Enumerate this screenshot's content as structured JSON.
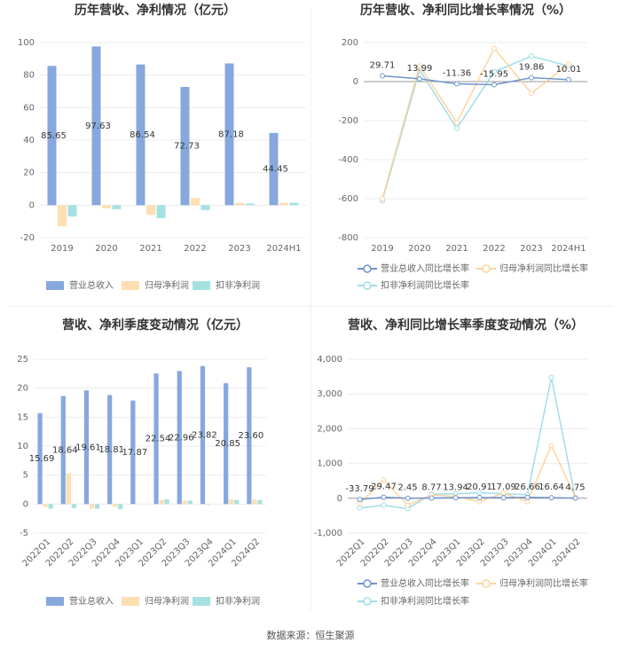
{
  "chart_data": [
    {
      "type": "bar",
      "title": "历年营收、净利情况（亿元）",
      "categories": [
        "2019",
        "2020",
        "2021",
        "2022",
        "2023",
        "2024H1"
      ],
      "series": [
        {
          "name": "营业总收入",
          "color": "#87a8dd",
          "values": [
            85.65,
            97.63,
            86.54,
            72.73,
            87.18,
            44.45
          ],
          "show_labels": true
        },
        {
          "name": "归母净利润",
          "color": "#fddfb2",
          "values": [
            -13,
            -2,
            -6,
            4.5,
            1.5,
            1.5
          ]
        },
        {
          "name": "扣非净利润",
          "color": "#a6e1e1",
          "values": [
            -7,
            -2.5,
            -8,
            -3,
            1,
            1.5
          ]
        }
      ],
      "ylim": [
        -20,
        100
      ],
      "yticks": [
        -20,
        0,
        20,
        40,
        60,
        80,
        100
      ],
      "grid": true
    },
    {
      "type": "line",
      "title": "历年营收、净利同比增长率情况（%）",
      "categories": [
        "2019",
        "2020",
        "2021",
        "2022",
        "2023",
        "2024H1"
      ],
      "series": [
        {
          "name": "营业总收入同比增长率",
          "color": "#6f94cf",
          "values": [
            29.71,
            13.99,
            -11.36,
            -15.95,
            19.86,
            10.01
          ],
          "show_labels": true
        },
        {
          "name": "归母净利润同比增长率",
          "color": "#fdd49c",
          "values": [
            -600,
            80,
            -210,
            170,
            -60,
            90
          ]
        },
        {
          "name": "扣非净利润同比增长率",
          "color": "#9fdde8",
          "values": [
            -610,
            60,
            -240,
            50,
            130,
            80
          ]
        }
      ],
      "ylim": [
        -800,
        200
      ],
      "yticks": [
        -800,
        -600,
        -400,
        -200,
        0,
        200
      ],
      "grid": true
    },
    {
      "type": "bar",
      "title": "营收、净利季度变动情况（亿元）",
      "categories": [
        "2022Q1",
        "2022Q2",
        "2022Q3",
        "2022Q4",
        "2023Q1",
        "2023Q2",
        "2023Q3",
        "2023Q4",
        "2024Q1",
        "2024Q2"
      ],
      "series": [
        {
          "name": "营业总收入",
          "color": "#87a8dd",
          "values": [
            15.69,
            18.64,
            19.61,
            18.81,
            17.87,
            22.54,
            22.96,
            23.82,
            20.85,
            23.6
          ],
          "value_labels": [
            "15.69",
            "18.64",
            "19.61",
            "18.81",
            "17.87",
            "22.54",
            "22.96",
            "23.82",
            "20.85",
            "23.60"
          ],
          "show_labels": true
        },
        {
          "name": "归母净利润",
          "color": "#fddfb2",
          "values": [
            -0.5,
            5.3,
            -0.8,
            -0.5,
            0,
            0.7,
            0.6,
            -0.2,
            0.8,
            0.8
          ]
        },
        {
          "name": "扣非净利润",
          "color": "#a6e1e1",
          "values": [
            -0.8,
            -0.7,
            -0.8,
            -0.9,
            0,
            0.8,
            0.6,
            0,
            0.7,
            0.7
          ]
        }
      ],
      "ylim": [
        -5,
        25
      ],
      "yticks": [
        -5,
        0,
        5,
        10,
        15,
        20,
        25
      ],
      "grid": true,
      "rotate_labels": true
    },
    {
      "type": "line",
      "title": "营收、净利同比增长率季度变动情况（%）",
      "categories": [
        "2022Q1",
        "2022Q2",
        "2022Q3",
        "2022Q4",
        "2023Q1",
        "2023Q2",
        "2023Q3",
        "2023Q4",
        "2024Q1",
        "2024Q2"
      ],
      "series": [
        {
          "name": "营业总收入同比增长率",
          "color": "#6f94cf",
          "values": [
            -33.79,
            29.47,
            2.45,
            8.77,
            13.94,
            20.91,
            17.09,
            26.66,
            16.64,
            4.75
          ],
          "show_labels": true
        },
        {
          "name": "归母净利润同比增长率",
          "color": "#fdd49c",
          "values": [
            -150,
            530,
            -200,
            100,
            50,
            -100,
            150,
            -100,
            1520,
            30
          ]
        },
        {
          "name": "扣非净利润同比增长率",
          "color": "#9fdde8",
          "values": [
            -280,
            -200,
            -300,
            120,
            130,
            160,
            130,
            100,
            3470,
            0
          ]
        }
      ],
      "ylim": [
        -1000,
        4000
      ],
      "yticks": [
        {
          "value": -1000,
          "label": "-1,000"
        },
        0,
        {
          "value": 1000,
          "label": "1,000"
        },
        {
          "value": 2000,
          "label": "2,000"
        },
        {
          "value": 3000,
          "label": "3,000"
        },
        {
          "value": 4000,
          "label": "4,000"
        }
      ],
      "grid": true,
      "rotate_labels": true
    }
  ],
  "footer": "数据来源：恒生聚源"
}
